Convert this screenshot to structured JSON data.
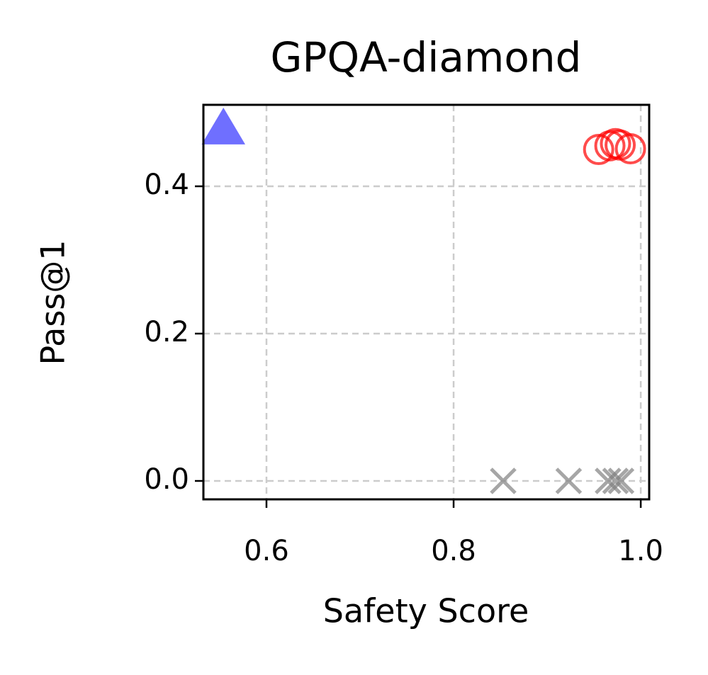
{
  "chart_data": {
    "type": "scatter",
    "title": "GPQA-diamond",
    "x_label": "Safety Score",
    "y_label": "Pass@1",
    "xlim": [
      0.5326,
      1.009
    ],
    "ylim": [
      -0.025,
      0.5106
    ],
    "xticks": [
      0.6,
      0.8,
      {
        "value": 1,
        "label": "1.0"
      }
    ],
    "yticks": [
      {
        "value": 0,
        "label": "0.0"
      },
      0.2,
      0.4
    ],
    "grid": true,
    "series": [
      {
        "color": "#3333ff",
        "marker": "triangle",
        "x": [
          0.554
        ],
        "values": [
          0.478
        ]
      },
      {
        "color": "#ff0000",
        "marker": "circle",
        "x": [
          0.955,
          0.967,
          0.973,
          0.978,
          0.989
        ],
        "values": [
          0.45,
          0.455,
          0.458,
          0.456,
          0.451
        ]
      },
      {
        "color": "#808080",
        "marker": "x",
        "x": [
          0.853,
          0.923,
          0.965,
          0.973,
          0.979
        ],
        "values": [
          0,
          0,
          0,
          0,
          0
        ]
      }
    ]
  }
}
